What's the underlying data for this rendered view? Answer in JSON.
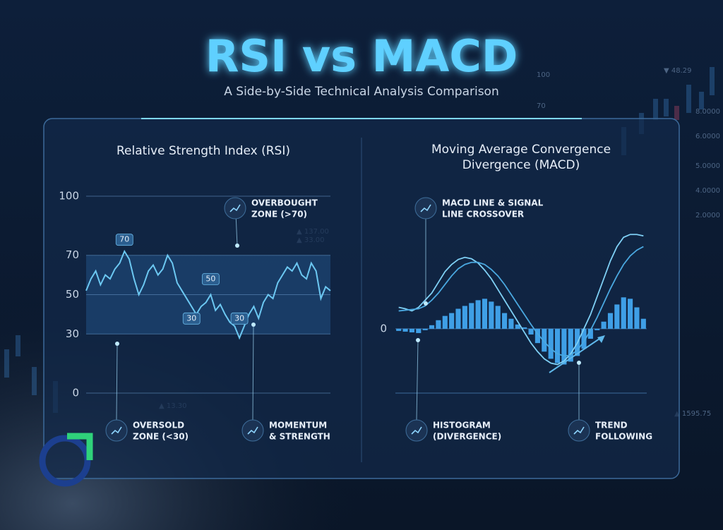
{
  "header": {
    "title": "RSI vs MACD",
    "subtitle": "A Side-by-Side Technical Analysis Comparison"
  },
  "chart_data": [
    {
      "type": "line",
      "title": "Relative Strength Index (RSI)",
      "ylim": [
        0,
        100
      ],
      "yticks": [
        0,
        30,
        50,
        70,
        100
      ],
      "grid": true,
      "band": [
        30,
        70
      ],
      "series": [
        {
          "color": "#6cc8f2",
          "values": [
            52,
            58,
            62,
            55,
            60,
            58,
            63,
            66,
            72,
            68,
            58,
            50,
            55,
            62,
            65,
            60,
            63,
            70,
            66,
            56,
            52,
            48,
            44,
            40,
            44,
            46,
            50,
            42,
            45,
            40,
            36,
            34,
            28,
            34,
            40,
            44,
            38,
            46,
            50,
            48,
            56,
            60,
            64,
            62,
            66,
            60,
            58,
            66,
            62,
            48,
            54,
            52
          ]
        }
      ],
      "markers": [
        {
          "x": 8,
          "y": 70
        },
        {
          "x": 26,
          "y": 50
        },
        {
          "x": 22,
          "y": 30
        },
        {
          "x": 32,
          "y": 30
        }
      ],
      "annotations": [
        {
          "lines": [
            "OVERBOUGHT",
            "ZONE (>70)"
          ]
        },
        {
          "lines": [
            "OVERSOLD",
            "ZONE (<30)"
          ]
        },
        {
          "lines": [
            "MOMENTUM",
            "& STRENGTH"
          ]
        }
      ]
    },
    {
      "type": "combo",
      "title": [
        "Moving Average Convergence",
        "Divergence (MACD)"
      ],
      "ylim": [
        -0.9,
        1.5
      ],
      "yticks": [
        0
      ],
      "grid": true,
      "series": [
        {
          "type": "bar",
          "color": "#3f9fe6",
          "values": [
            -0.03,
            -0.04,
            -0.05,
            -0.06,
            -0.02,
            0.05,
            0.12,
            0.18,
            0.22,
            0.28,
            0.32,
            0.36,
            0.4,
            0.42,
            0.38,
            0.32,
            0.22,
            0.14,
            0.06,
            0.02,
            -0.08,
            -0.2,
            -0.32,
            -0.42,
            -0.48,
            -0.5,
            -0.46,
            -0.38,
            -0.28,
            -0.14,
            -0.02,
            0.1,
            0.22,
            0.34,
            0.44,
            0.42,
            0.3,
            0.14
          ]
        },
        {
          "type": "line",
          "color": "#7fd0f5",
          "values": [
            0.3,
            0.28,
            0.25,
            0.3,
            0.4,
            0.5,
            0.65,
            0.8,
            0.9,
            0.97,
            1.0,
            0.98,
            0.92,
            0.82,
            0.7,
            0.55,
            0.4,
            0.25,
            0.1,
            -0.05,
            -0.2,
            -0.32,
            -0.42,
            -0.48,
            -0.5,
            -0.45,
            -0.35,
            -0.2,
            0,
            0.2,
            0.45,
            0.7,
            0.95,
            1.15,
            1.28,
            1.32,
            1.32,
            1.3
          ]
        },
        {
          "type": "line",
          "color": "#4aa8e0",
          "values": [
            0.25,
            0.26,
            0.27,
            0.28,
            0.32,
            0.4,
            0.5,
            0.62,
            0.74,
            0.84,
            0.9,
            0.93,
            0.93,
            0.9,
            0.83,
            0.74,
            0.62,
            0.48,
            0.34,
            0.2,
            0.06,
            -0.07,
            -0.18,
            -0.28,
            -0.35,
            -0.38,
            -0.37,
            -0.3,
            -0.18,
            -0.02,
            0.16,
            0.36,
            0.56,
            0.74,
            0.9,
            1.02,
            1.1,
            1.15
          ]
        }
      ],
      "annotations": [
        {
          "lines": [
            "MACD LINE & SIGNAL",
            "LINE CROSSOVER"
          ]
        },
        {
          "lines": [
            "HISTOGRAM",
            "(DIVERGENCE)"
          ]
        },
        {
          "lines": [
            "TREND",
            "FOLLOWING"
          ]
        }
      ]
    }
  ],
  "background_labels": [
    "100",
    "▼ 48.29",
    "70",
    "8.0000",
    "6.0000",
    "5.0000",
    "4.0000",
    "2.0000",
    "▲ 1595.75",
    "▲ 13.30",
    "▲ 33.00",
    "▲ 137.00"
  ]
}
